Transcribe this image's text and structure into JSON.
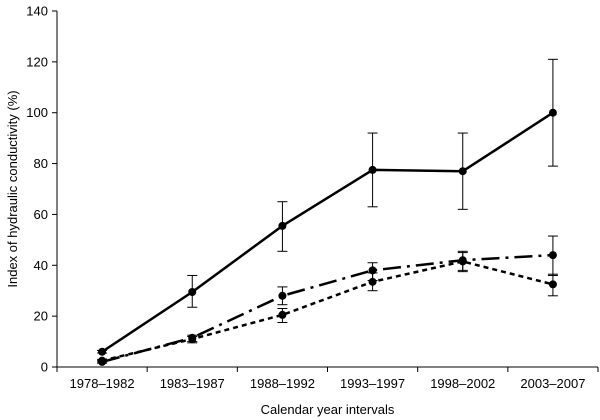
{
  "chart_data": {
    "type": "line",
    "title": "",
    "xlabel": "Calendar year intervals",
    "ylabel": "Index of hydraulic conductivity (%)",
    "categories": [
      "1978–1982",
      "1983–1987",
      "1988–1992",
      "1993–1997",
      "1998–2002",
      "2003–2007"
    ],
    "ylim": [
      0,
      140
    ],
    "yticks": [
      0,
      20,
      40,
      60,
      80,
      100,
      120,
      140
    ],
    "grid": false,
    "legend": "none",
    "series": [
      {
        "style": "solid",
        "values": [
          6,
          29.5,
          55.5,
          77.5,
          77,
          100
        ],
        "err_low": [
          5.5,
          23.5,
          45.5,
          63,
          62,
          79
        ],
        "err_high": [
          6.5,
          36,
          65,
          92,
          92,
          121
        ],
        "color": "#000000"
      },
      {
        "style": "long-dash",
        "values": [
          2,
          11.5,
          28,
          38,
          42,
          44
        ],
        "err_low": [
          1.5,
          10,
          24.5,
          34,
          38,
          36
        ],
        "err_high": [
          2.5,
          12.5,
          31.5,
          41,
          45.5,
          51.5
        ],
        "color": "#000000"
      },
      {
        "style": "dotted",
        "values": [
          2.5,
          11,
          20.5,
          33.5,
          41.5,
          32.5
        ],
        "err_low": [
          2,
          9.5,
          17.5,
          30,
          37.5,
          28
        ],
        "err_high": [
          3,
          12,
          23,
          37,
          45,
          36.5
        ],
        "color": "#000000"
      }
    ]
  }
}
